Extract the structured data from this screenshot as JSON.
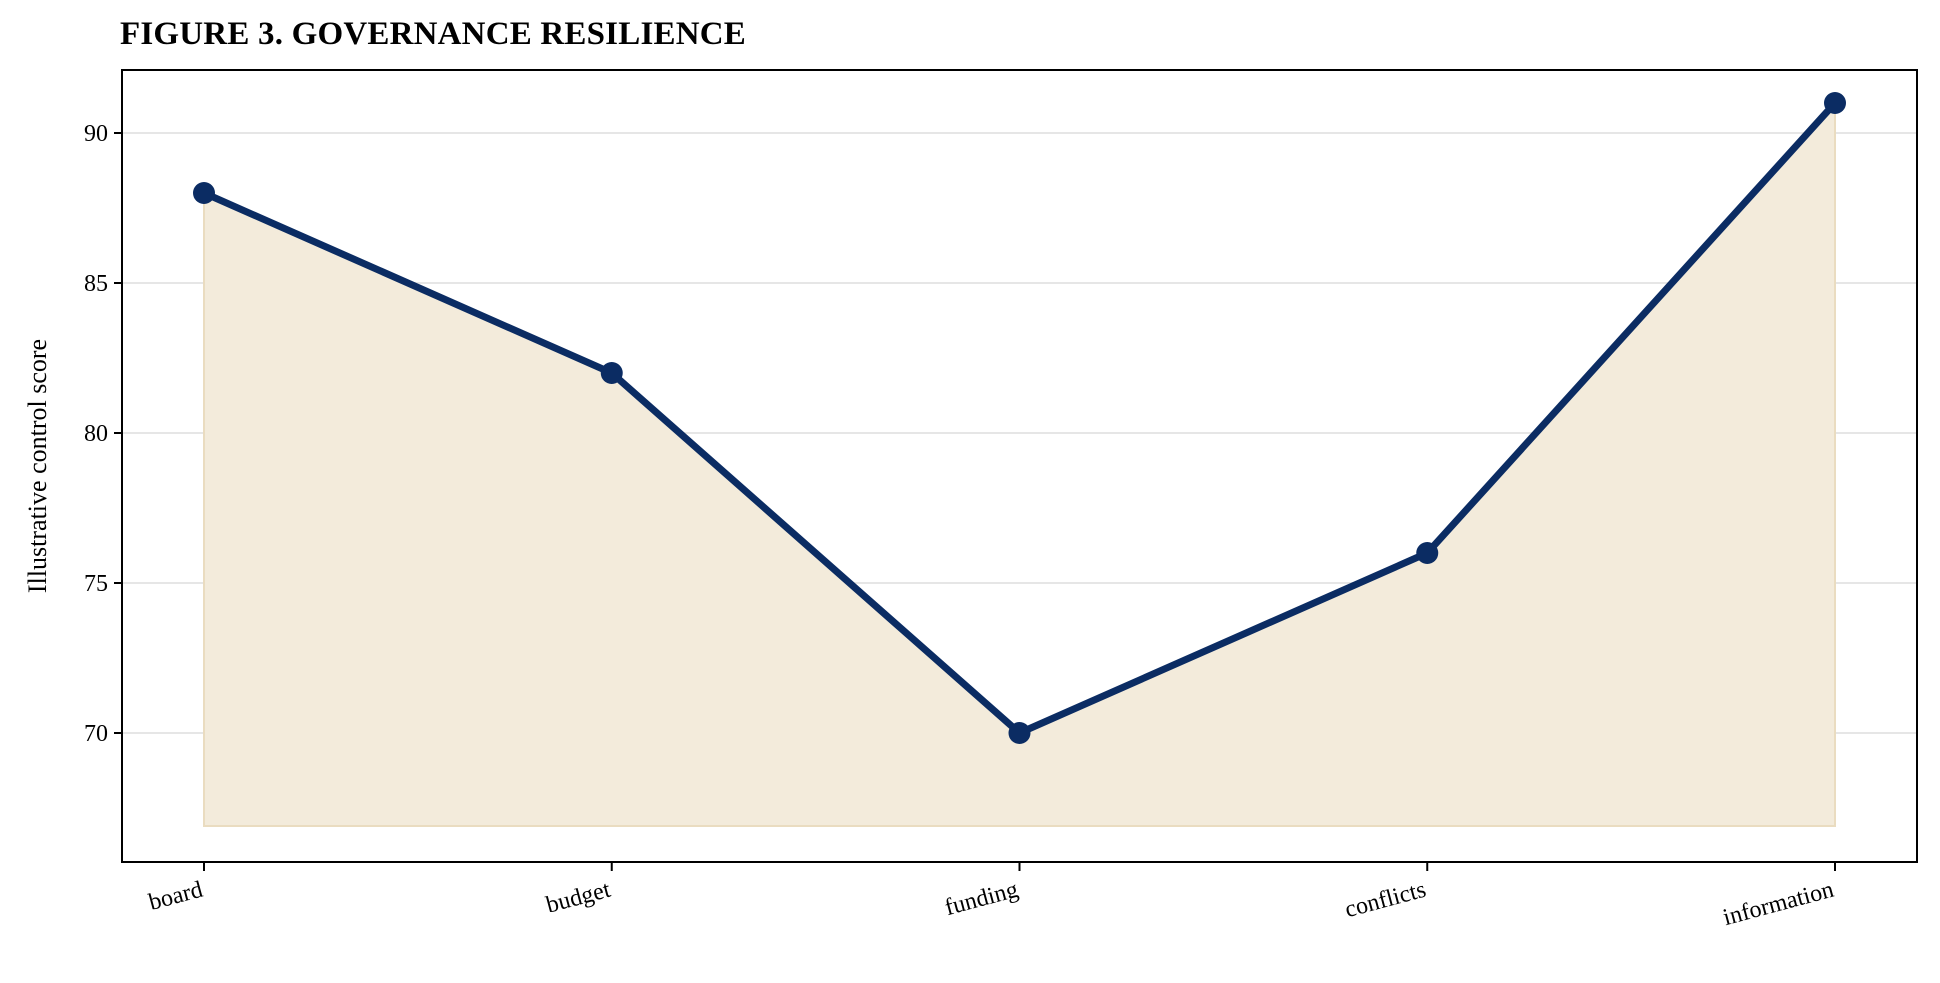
{
  "title": "FIGURE 3. GOVERNANCE RESILIENCE",
  "colors": {
    "line": "#0b2c63",
    "fill": "#f3ebdb",
    "fill_edge": "#eadcc0",
    "grid": "#e6e6e6",
    "axes": "#000000"
  },
  "chart_data": {
    "type": "line",
    "title": "FIGURE 3. GOVERNANCE RESILIENCE",
    "xlabel": "",
    "ylabel": "Illustrative control score",
    "categories": [
      "board",
      "budget",
      "funding",
      "conflicts",
      "information"
    ],
    "series": [
      {
        "values": [
          88,
          82,
          70,
          76,
          91
        ]
      }
    ],
    "fill_baseline": 66.9,
    "ylim": [
      65.7,
      92.1
    ],
    "yticks": [
      70,
      75,
      80,
      85,
      90
    ],
    "grid": "horizontal",
    "markers": true,
    "legend": "none"
  }
}
